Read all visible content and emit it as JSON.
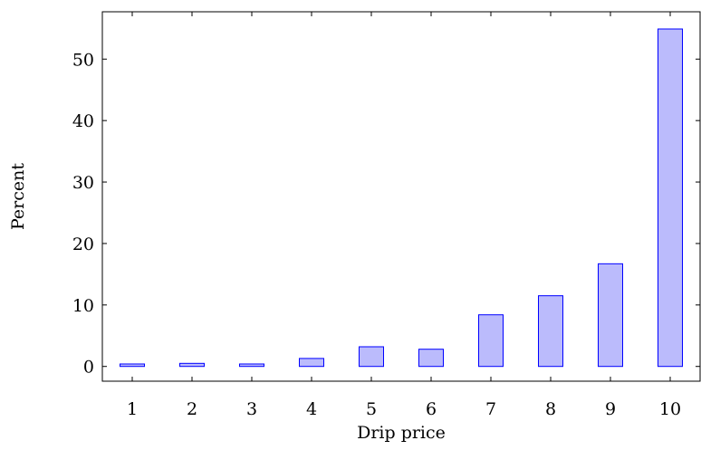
{
  "chart_data": {
    "type": "bar",
    "title": "",
    "xlabel": "Drip price",
    "ylabel": "Percent",
    "categories": [
      "1",
      "2",
      "3",
      "4",
      "5",
      "6",
      "7",
      "8",
      "9",
      "10"
    ],
    "values": [
      0.4,
      0.5,
      0.4,
      1.3,
      3.2,
      2.8,
      8.4,
      11.5,
      16.7,
      54.9
    ],
    "ylim": [
      -2.4,
      57.7
    ],
    "yticks": [
      "0",
      "10",
      "20",
      "30",
      "40",
      "50"
    ],
    "xlim": [
      0.5,
      10.5
    ],
    "grid": false,
    "legend": "none",
    "bar_fill": "#bbbbfc",
    "bar_stroke": "#0000ff"
  }
}
